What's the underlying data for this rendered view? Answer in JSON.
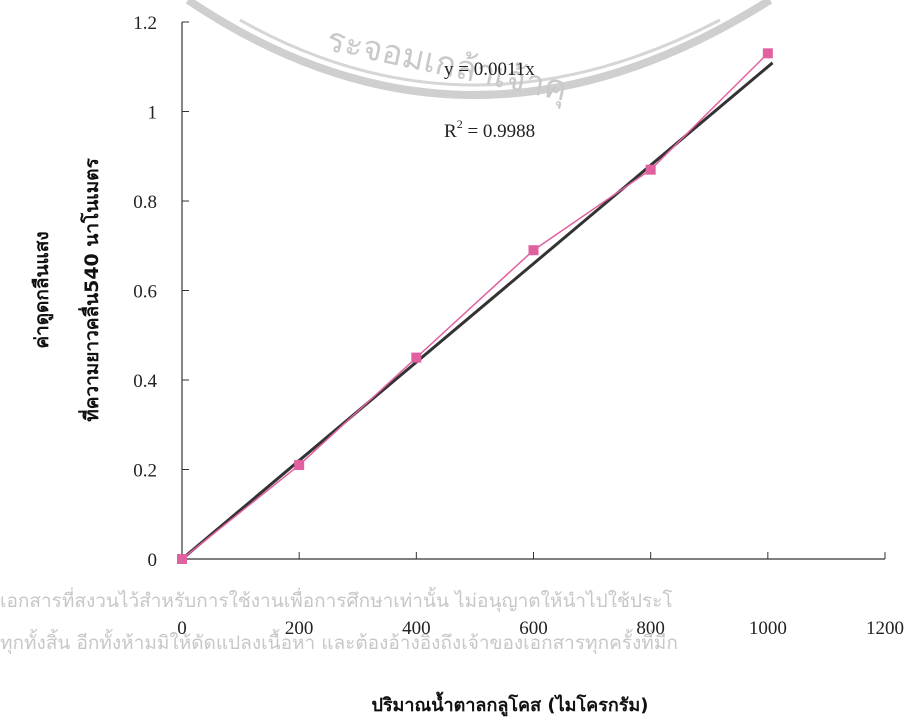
{
  "chart_data": {
    "type": "scatter",
    "title": "",
    "xlabel": "ปริมาณน้ำตาลกลูโคส (ไมโครกรัม)",
    "ylabel_lines": [
      "ค่าดูดกลืนแสง",
      "ที่ความยาวคลื่น540 นาโนเมตร"
    ],
    "xlim": [
      0,
      1200
    ],
    "ylim": [
      0,
      1.2
    ],
    "x_ticks": [
      "0",
      "200",
      "400",
      "600",
      "800",
      "1000",
      "1200"
    ],
    "y_ticks": [
      "0",
      "0.2",
      "0.4",
      "0.6",
      "0.8",
      "1",
      "1.2"
    ],
    "series": [
      {
        "x": [
          0,
          200,
          400,
          600,
          800,
          1000
        ],
        "values": [
          0.0,
          0.21,
          0.45,
          0.69,
          0.87,
          1.13
        ],
        "color": "#e060a0"
      }
    ],
    "trendline": {
      "slope": 0.0011,
      "equation": "y = 0.0011x",
      "r2_prefix": "R",
      "r2_exp": "2",
      "r2_value": " = 0.9988",
      "color": "#333333"
    },
    "grid": false
  },
  "watermark": {
    "line1": "เอกสารที่สงวนไว้สำหรับการใช้งานเพื่อการศึกษาเท่านั้น ไม่อนุญาตให้นำไปใช้ประโ",
    "line2": "ทุกทั้งสิ้น อีกทั้งห้ามมิให้ดัดแปลงเนื้อหา และต้องอ้างอิงถึงเจ้าของเอกสารทุกครั้งที่มีก",
    "seal_text": "ระจอมเกล้าเจ้าคุ"
  }
}
